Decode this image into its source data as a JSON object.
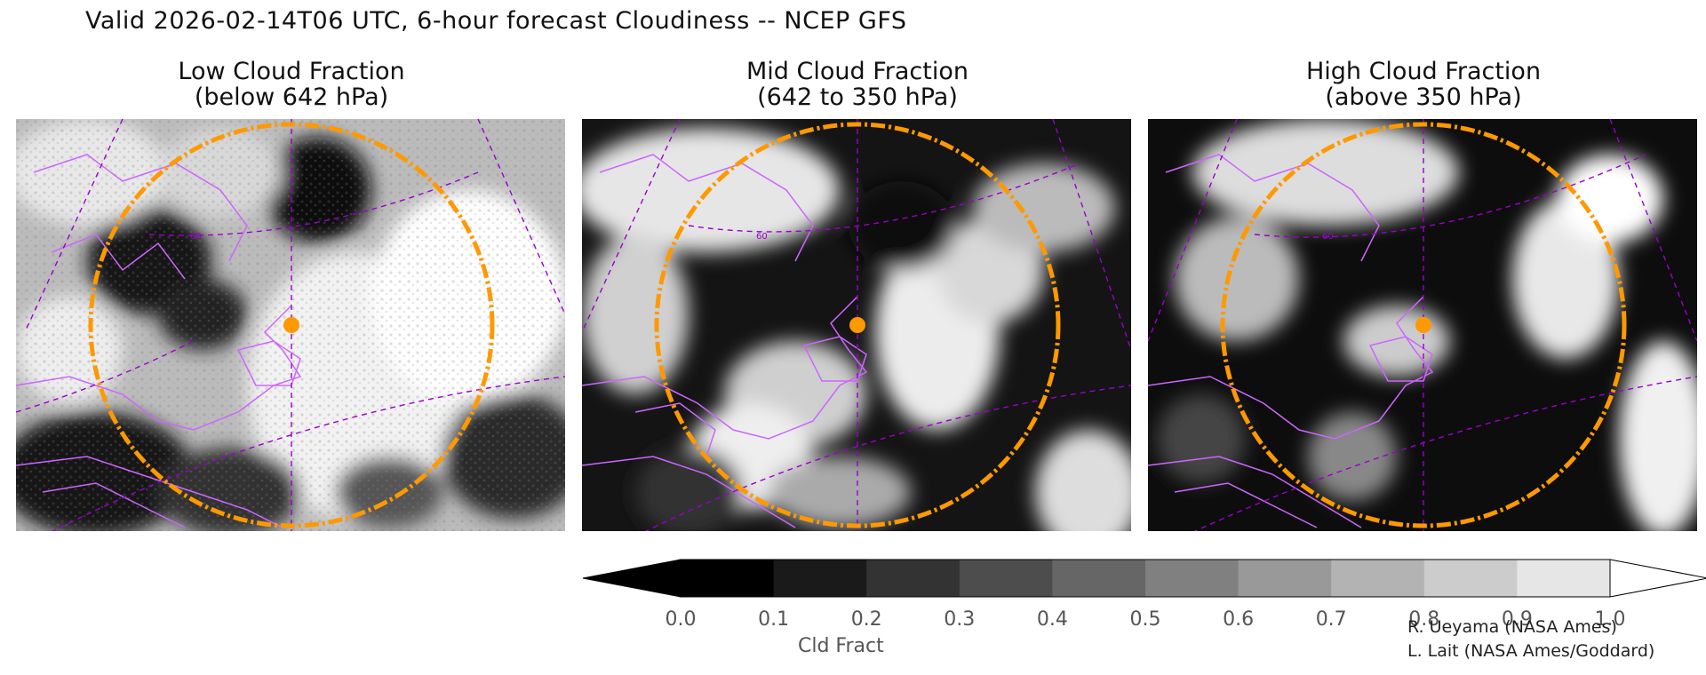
{
  "header": {
    "title": "Valid 2026-02-14T06 UTC, 6-hour forecast Cloudiness -- NCEP GFS"
  },
  "panels": [
    {
      "title_line1": "Low Cloud Fraction",
      "title_line2": "(below 642 hPa)"
    },
    {
      "title_line1": "Mid Cloud Fraction",
      "title_line2": "(642 to 350 hPa)"
    },
    {
      "title_line1": "High Cloud Fraction",
      "title_line2": "(above 350 hPa)"
    }
  ],
  "map": {
    "graticule_label": "60",
    "colors": {
      "coastline": "#cc66ff",
      "graticule": "#9900cc",
      "range_ring": "#ff9900",
      "center_marker": "#ff9900"
    },
    "legend": {
      "levels": [
        0.0,
        0.1,
        0.2,
        0.3,
        0.4,
        0.5,
        0.6,
        0.7,
        0.8,
        0.9,
        1.0
      ],
      "tick_labels": [
        "0.0",
        "0.1",
        "0.2",
        "0.3",
        "0.4",
        "0.5",
        "0.6",
        "0.7",
        "0.8",
        "0.9",
        "1.0"
      ],
      "fill_colors": [
        "#000000",
        "#1a1a1a",
        "#333333",
        "#4d4d4d",
        "#666666",
        "#808080",
        "#999999",
        "#b3b3b3",
        "#cccccc",
        "#e6e6e6"
      ],
      "under_color": "#000000",
      "over_color": "#ffffff",
      "label": "Cld Fract"
    }
  },
  "credits": {
    "line1": "R. Ueyama (NASA Ames)",
    "line2": "L. Lait (NASA Ames/Goddard)"
  }
}
